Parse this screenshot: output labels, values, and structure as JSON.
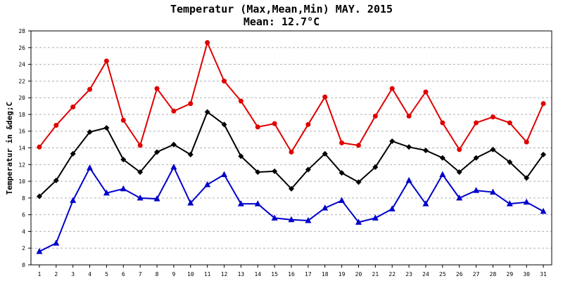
{
  "chart_data": {
    "type": "line",
    "title": "Temperatur (Max,Mean,Min) MAY. 2015",
    "subtitle": "Mean: 12.7°C",
    "ylabel": "Temperatur in &deg;C",
    "xlabel": "",
    "x": [
      1,
      2,
      3,
      4,
      5,
      6,
      7,
      8,
      9,
      10,
      11,
      12,
      13,
      14,
      15,
      16,
      17,
      18,
      19,
      20,
      21,
      22,
      23,
      24,
      25,
      26,
      27,
      28,
      29,
      30,
      31
    ],
    "ylim": [
      0,
      28
    ],
    "yticks": [
      0,
      2,
      4,
      6,
      8,
      10,
      12,
      14,
      16,
      18,
      20,
      22,
      24,
      26,
      28
    ],
    "grid": "horizontal dashed",
    "legend": "none",
    "series": [
      {
        "color": "#e00000",
        "marker": "circle",
        "values": [
          14.1,
          16.7,
          18.9,
          21.0,
          24.4,
          17.3,
          14.3,
          21.1,
          18.4,
          19.3,
          26.6,
          22.0,
          19.6,
          16.5,
          16.9,
          13.5,
          16.8,
          20.1,
          14.6,
          14.3,
          17.8,
          21.1,
          17.8,
          20.7,
          17.0,
          13.8,
          17.0,
          17.7,
          17.0,
          14.7,
          19.3
        ]
      },
      {
        "color": "#000000",
        "marker": "diamond",
        "values": [
          8.2,
          10.1,
          13.3,
          15.9,
          16.4,
          12.6,
          11.1,
          13.5,
          14.4,
          13.2,
          18.3,
          16.8,
          13.0,
          11.1,
          11.2,
          9.1,
          11.4,
          13.3,
          11.0,
          9.9,
          11.7,
          14.8,
          14.1,
          13.7,
          12.8,
          11.1,
          12.8,
          13.8,
          12.3,
          10.4,
          13.2
        ]
      },
      {
        "color": "#0000cc",
        "marker": "triangle",
        "values": [
          1.6,
          2.6,
          7.7,
          11.6,
          8.6,
          9.1,
          8.0,
          7.9,
          11.7,
          7.4,
          9.6,
          10.8,
          7.3,
          7.3,
          5.6,
          5.4,
          5.3,
          6.8,
          7.7,
          5.1,
          5.6,
          6.7,
          10.1,
          7.3,
          10.8,
          8.0,
          8.9,
          8.7,
          7.3,
          7.5,
          6.4
        ]
      }
    ]
  }
}
